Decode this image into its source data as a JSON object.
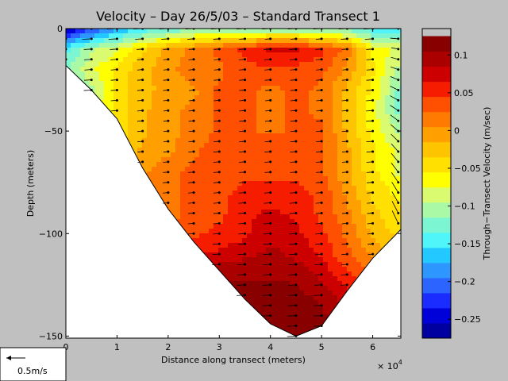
{
  "chart_data": {
    "type": "heatmap",
    "title": "Velocity – Day 26/5/03 – Standard Transect 1",
    "xlabel": "Distance along transect (meters)",
    "ylabel": "Depth (meters)",
    "x_multiplier": "× 10",
    "x_multiplier_exp": "4",
    "xlim": [
      0,
      6.55
    ],
    "ylim": [
      -151,
      0
    ],
    "x_ticks": [
      0,
      1,
      2,
      3,
      4,
      5,
      6
    ],
    "x_tick_labels": [
      "0",
      "1",
      "2",
      "3",
      "4",
      "5",
      "6"
    ],
    "y_ticks": [
      0,
      -50,
      -100,
      -150
    ],
    "y_tick_labels": [
      "0",
      "−50",
      "−100",
      "−150"
    ],
    "colorbar": {
      "label": "Through−Transect Velocity (m/sec)",
      "range": [
        -0.275,
        0.135
      ],
      "step": 0.02,
      "ticks": [
        0.1,
        0.05,
        0,
        -0.05,
        -0.1,
        -0.15,
        -0.2,
        -0.25
      ],
      "tick_labels": [
        "0.1",
        "0.05",
        "0",
        "−0.05",
        "−0.1",
        "−0.15",
        "−0.2",
        "−0.25"
      ],
      "colors": [
        "#0000a0",
        "#0000d8",
        "#1a2cff",
        "#2c64ff",
        "#2e96ff",
        "#22c8ff",
        "#4ff5f8",
        "#7cf6d2",
        "#a9f9a7",
        "#dafb6f",
        "#ffff00",
        "#ffe000",
        "#ffc400",
        "#ff9f00",
        "#ff7a00",
        "#ff4f00",
        "#f51c00",
        "#cc0000",
        "#aa0000",
        "#880000"
      ]
    },
    "bottom_profile": [
      [
        0,
        -18
      ],
      [
        0.5,
        -30
      ],
      [
        1,
        -44
      ],
      [
        1.5,
        -68
      ],
      [
        2,
        -88
      ],
      [
        2.5,
        -104
      ],
      [
        3,
        -118
      ],
      [
        3.5,
        -132
      ],
      [
        4,
        -144
      ],
      [
        4.5,
        -150
      ],
      [
        5,
        -145
      ],
      [
        5.5,
        -128
      ],
      [
        6,
        -112
      ],
      [
        6.55,
        -98
      ]
    ],
    "velocity_grid": {
      "x": [
        0,
        0.5,
        1,
        1.5,
        2,
        2.5,
        3,
        3.5,
        4,
        4.5,
        5,
        5.5,
        6,
        6.5
      ],
      "depth": [
        0,
        -10,
        -20,
        -30,
        -40,
        -50,
        -60,
        -70,
        -80,
        -90,
        -100,
        -110,
        -120,
        -130,
        -140,
        -150
      ],
      "values": [
        [
          -0.27,
          -0.22,
          -0.18,
          -0.15,
          -0.14,
          -0.12,
          -0.12,
          -0.12,
          -0.12,
          -0.12,
          -0.12,
          -0.13,
          -0.15,
          -0.15
        ],
        [
          -0.14,
          -0.1,
          -0.08,
          -0.04,
          -0.01,
          0.01,
          0.03,
          0.05,
          0.07,
          0.07,
          0.05,
          0.02,
          -0.06,
          -0.08
        ],
        [
          -0.12,
          -0.08,
          -0.05,
          -0.02,
          0.0,
          0.02,
          0.02,
          0.04,
          0.04,
          0.04,
          0.03,
          0.0,
          -0.05,
          -0.1
        ],
        [
          -0.13,
          -0.1,
          -0.05,
          -0.02,
          -0.01,
          0.0,
          0.03,
          0.03,
          0.02,
          0.03,
          0.02,
          -0.02,
          -0.06,
          -0.12
        ],
        [
          -0.12,
          -0.08,
          -0.05,
          -0.02,
          0.0,
          0.01,
          0.03,
          0.03,
          0.02,
          0.03,
          0.02,
          -0.02,
          -0.07,
          -0.12
        ],
        [
          -0.12,
          -0.08,
          -0.05,
          -0.02,
          0.0,
          0.01,
          0.03,
          0.03,
          0.02,
          0.03,
          0.03,
          -0.02,
          -0.06,
          -0.1
        ],
        [
          -0.1,
          -0.08,
          -0.04,
          -0.01,
          0.0,
          0.02,
          0.04,
          0.04,
          0.04,
          0.04,
          0.03,
          -0.01,
          -0.05,
          -0.08
        ],
        [
          -0.08,
          -0.06,
          -0.03,
          0.0,
          0.02,
          0.03,
          0.04,
          0.04,
          0.04,
          0.04,
          0.03,
          -0.01,
          -0.05,
          -0.08
        ],
        [
          -0.06,
          -0.04,
          -0.02,
          0.0,
          0.02,
          0.03,
          0.04,
          0.05,
          0.05,
          0.05,
          0.04,
          0.0,
          -0.04,
          -0.06
        ],
        [
          -0.05,
          -0.03,
          -0.01,
          0.0,
          0.02,
          0.03,
          0.04,
          0.06,
          0.07,
          0.06,
          0.04,
          0.01,
          -0.03,
          -0.05
        ],
        [
          -0.04,
          -0.02,
          0.0,
          0.01,
          0.02,
          0.04,
          0.05,
          0.06,
          0.08,
          0.07,
          0.05,
          0.02,
          -0.02,
          -0.04
        ],
        [
          -0.03,
          -0.01,
          0.01,
          0.02,
          0.04,
          0.06,
          0.07,
          0.08,
          0.09,
          0.08,
          0.06,
          0.03,
          0.0,
          -0.02
        ],
        [
          -0.02,
          0.0,
          0.02,
          0.04,
          0.06,
          0.08,
          0.1,
          0.1,
          0.1,
          0.1,
          0.08,
          0.05,
          0.02,
          0.0
        ],
        [
          0.0,
          0.02,
          0.04,
          0.06,
          0.08,
          0.1,
          0.12,
          0.12,
          0.12,
          0.11,
          0.1,
          0.07,
          0.04,
          0.02
        ],
        [
          0.02,
          0.04,
          0.06,
          0.08,
          0.1,
          0.12,
          0.13,
          0.13,
          0.13,
          0.13,
          0.11,
          0.08,
          0.05,
          0.03
        ],
        [
          0.04,
          0.06,
          0.08,
          0.1,
          0.12,
          0.13,
          0.13,
          0.14,
          0.14,
          0.14,
          0.12,
          0.09,
          0.06,
          0.04
        ]
      ]
    },
    "vector_stations": [
      0,
      0.5,
      1,
      1.5,
      2,
      2.5,
      3,
      3.5,
      4,
      4.5,
      5,
      5.5,
      6,
      6.5
    ],
    "vector_depth_step": 5,
    "scale_arrow": {
      "label": "0.5m/s",
      "value": 0.5
    }
  }
}
